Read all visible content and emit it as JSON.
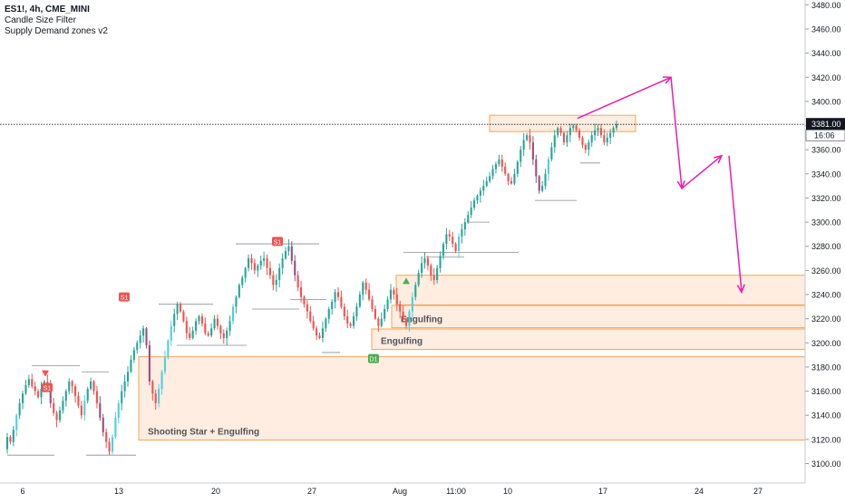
{
  "chart_data": {
    "type": "candlestick",
    "title": "ES1!, 4h, CME_MINI",
    "indicators": [
      "Candle Size Filter",
      "Supply Demand zones v2"
    ],
    "ylim": [
      3090,
      3485
    ],
    "y_ticks": [
      3100,
      3120,
      3140,
      3160,
      3180,
      3200,
      3220,
      3240,
      3260,
      3280,
      3300,
      3320,
      3340,
      3360,
      3380,
      3400,
      3420,
      3440,
      3460,
      3480
    ],
    "x_tick_labels": [
      "6",
      "13",
      "20",
      "27",
      "Aug",
      "11:00",
      "10",
      "17",
      "24",
      "27"
    ],
    "last_price": 3381.0,
    "last_price_label": "3381.00",
    "countdown_label": "16:06",
    "zones": [
      {
        "top": 3188.5,
        "bottom": 3119.5,
        "label": "Shooting Star + Engulfing"
      },
      {
        "top": 3211.5,
        "bottom": 3194.5,
        "label": "Engulfing"
      },
      {
        "top": 3231.0,
        "bottom": 3212.5,
        "label": "Engulfing"
      },
      {
        "top": 3256.0,
        "bottom": 3231.5,
        "label": ""
      },
      {
        "top": 3388.5,
        "bottom": 3375.0,
        "label": ""
      }
    ],
    "markers": [
      {
        "type": "label",
        "text": "S1",
        "price": 3163
      },
      {
        "type": "label",
        "text": "S1",
        "price": 3238
      },
      {
        "type": "label",
        "text": "S1",
        "price": 3284
      },
      {
        "type": "label",
        "text": "D1",
        "price": 3187
      },
      {
        "type": "triangle-up",
        "text": "",
        "price": 3251
      },
      {
        "type": "triangle-down",
        "text": "",
        "price": 3175
      }
    ],
    "projection": [
      3386,
      3420,
      3328,
      3355,
      3242
    ],
    "candles": []
  },
  "colors": {
    "up": "#26a69a",
    "up_filter": "#4dd0e1",
    "down": "#ef5350",
    "down_filter": "#9c4d7f",
    "zone_fill": "#fde7d6",
    "zone_border": "#f3a55a",
    "projection": "#e91eaa",
    "axis_text": "#131722",
    "grid": "#e6e6e6"
  }
}
